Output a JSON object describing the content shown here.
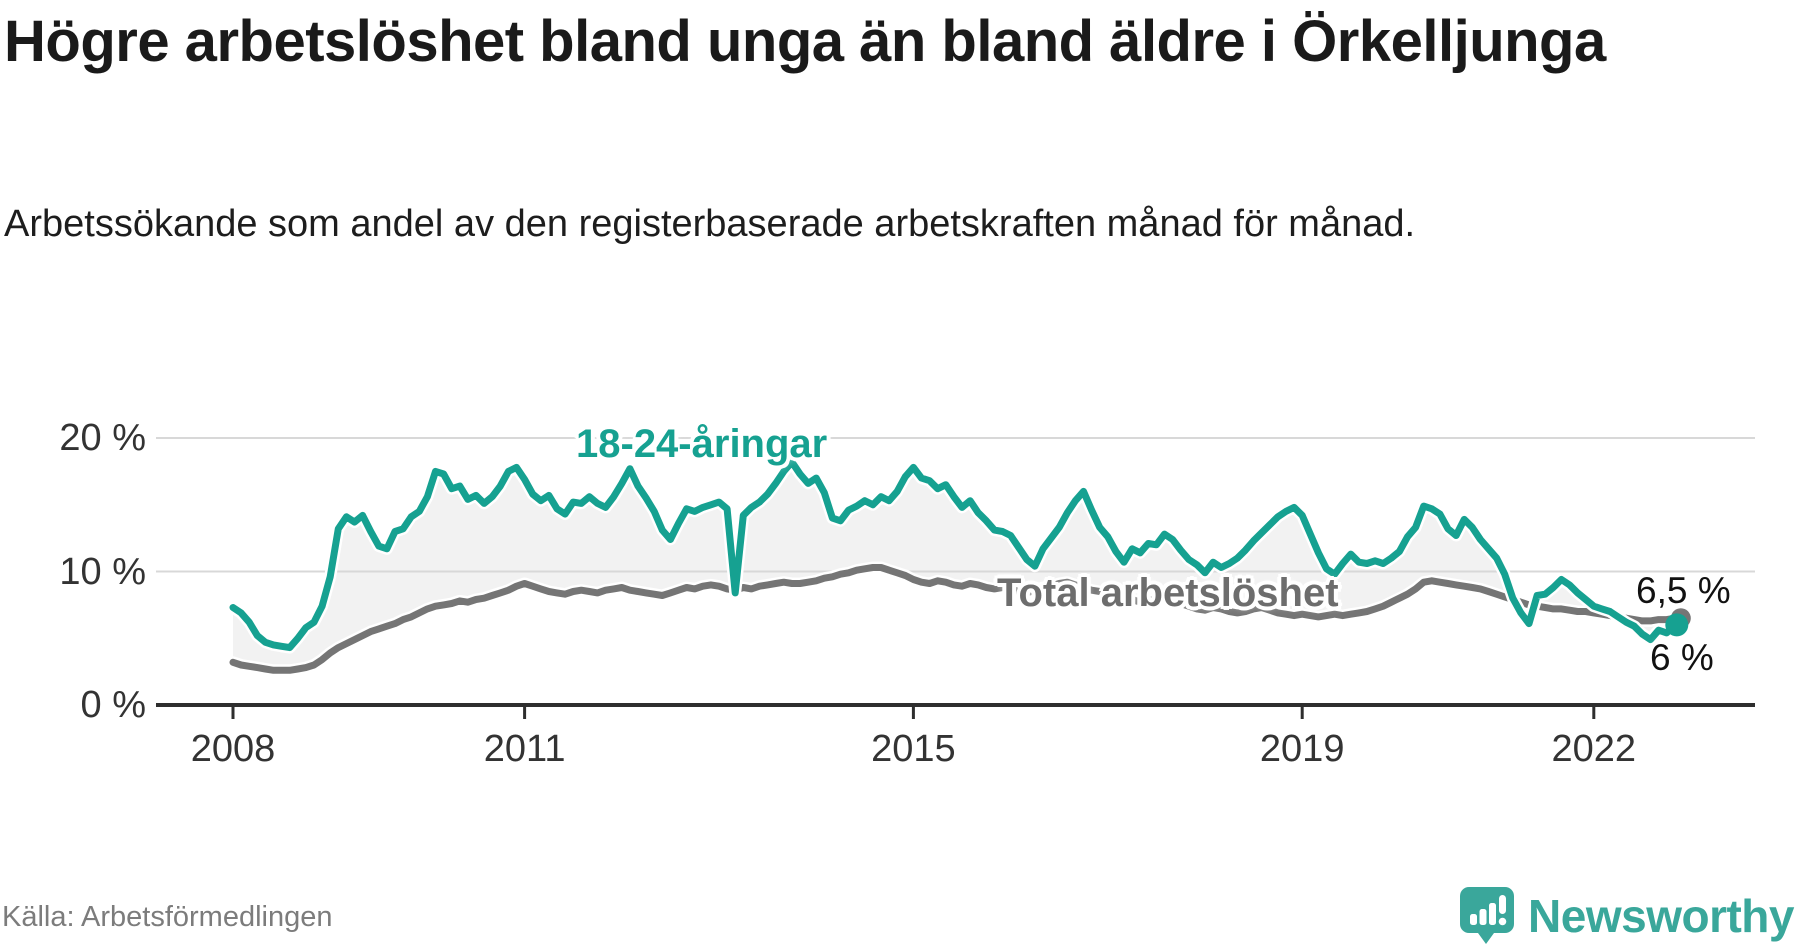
{
  "header": {
    "title": "Högre arbetslöshet bland unga än bland äldre i Örkelljunga",
    "subtitle": "Arbetssökande som andel av den registerbaserade arbetskraften månad för månad."
  },
  "footer": {
    "source": "Källa: Arbetsförmedlingen",
    "brand": "Newsworthy"
  },
  "colors": {
    "youth_line": "#16a191",
    "total_line": "#757575",
    "total_label": "#6d6d6d",
    "band_fill": "#f2f2f2",
    "gridline": "#d8d8d8",
    "axis": "#2e2e2e",
    "tick_text": "#333333",
    "end_label_text": "#111111",
    "brand_teal": "#3aa79b"
  },
  "chart_data": {
    "type": "line",
    "unit": "%",
    "frequency": "monthly",
    "x_start": "2008-01",
    "x_end": "2022-11",
    "ylim": [
      0,
      25
    ],
    "grid": "horizontal",
    "y_axis": {
      "tick_labels": [
        "20 %",
        "10 %",
        "0 %"
      ],
      "tick_values": [
        20,
        10,
        0
      ]
    },
    "x_axis": {
      "tick_years": [
        2008,
        2011,
        2015,
        2019,
        2022
      ]
    },
    "series": [
      {
        "name": "18-24-åringar",
        "color": "#16a191",
        "values": [
          7.3,
          6.9,
          6.2,
          5.2,
          4.7,
          4.5,
          4.4,
          4.3,
          5.0,
          5.8,
          6.2,
          7.4,
          9.6,
          13.2,
          14.1,
          13.7,
          14.2,
          13.0,
          11.9,
          11.7,
          13.0,
          13.2,
          14.1,
          14.5,
          15.6,
          17.5,
          17.3,
          16.2,
          16.4,
          15.4,
          15.7,
          15.1,
          15.6,
          16.4,
          17.5,
          17.8,
          16.9,
          15.8,
          15.3,
          15.7,
          14.7,
          14.3,
          15.2,
          15.1,
          15.6,
          15.1,
          14.8,
          15.6,
          16.6,
          17.7,
          16.4,
          15.5,
          14.5,
          13.1,
          12.4,
          13.6,
          14.7,
          14.5,
          14.8,
          15.0,
          15.2,
          14.7,
          8.4,
          14.2,
          14.8,
          15.2,
          15.8,
          16.6,
          17.5,
          18.2,
          17.3,
          16.6,
          17.0,
          15.9,
          14.0,
          13.8,
          14.6,
          14.9,
          15.3,
          15.0,
          15.6,
          15.3,
          16.0,
          17.1,
          17.8,
          17.0,
          16.8,
          16.2,
          16.5,
          15.6,
          14.8,
          15.3,
          14.4,
          13.8,
          13.1,
          13.0,
          12.7,
          11.8,
          10.9,
          10.4,
          11.7,
          12.5,
          13.3,
          14.4,
          15.3,
          16.0,
          14.6,
          13.3,
          12.6,
          11.5,
          10.7,
          11.7,
          11.4,
          12.1,
          12.0,
          12.8,
          12.4,
          11.6,
          10.9,
          10.5,
          9.9,
          10.7,
          10.3,
          10.6,
          11.0,
          11.6,
          12.3,
          12.9,
          13.5,
          14.1,
          14.5,
          14.8,
          14.2,
          12.8,
          11.4,
          10.2,
          9.8,
          10.6,
          11.3,
          10.7,
          10.6,
          10.8,
          10.6,
          11.0,
          11.5,
          12.6,
          13.3,
          14.9,
          14.7,
          14.3,
          13.2,
          12.7,
          13.9,
          13.3,
          12.4,
          11.7,
          11.0,
          9.8,
          8.0,
          6.9,
          6.1,
          8.2,
          8.3,
          8.8,
          9.4,
          9.0,
          8.4,
          7.9,
          7.4,
          7.2,
          7.0,
          6.6,
          6.2,
          5.9,
          5.3,
          4.9,
          5.6,
          5.4,
          6.0
        ]
      },
      {
        "name": "Total arbetslöshet",
        "color": "#757575",
        "values": [
          3.2,
          3.0,
          2.9,
          2.8,
          2.7,
          2.6,
          2.6,
          2.6,
          2.7,
          2.8,
          3.0,
          3.4,
          3.9,
          4.3,
          4.6,
          4.9,
          5.2,
          5.5,
          5.7,
          5.9,
          6.1,
          6.4,
          6.6,
          6.9,
          7.2,
          7.4,
          7.5,
          7.6,
          7.8,
          7.7,
          7.9,
          8.0,
          8.2,
          8.4,
          8.6,
          8.9,
          9.1,
          8.9,
          8.7,
          8.5,
          8.4,
          8.3,
          8.5,
          8.6,
          8.5,
          8.4,
          8.6,
          8.7,
          8.8,
          8.6,
          8.5,
          8.4,
          8.3,
          8.2,
          8.4,
          8.6,
          8.8,
          8.7,
          8.9,
          9.0,
          8.9,
          8.7,
          8.6,
          8.8,
          8.7,
          8.9,
          9.0,
          9.1,
          9.2,
          9.1,
          9.1,
          9.2,
          9.3,
          9.5,
          9.6,
          9.8,
          9.9,
          10.1,
          10.2,
          10.3,
          10.3,
          10.1,
          9.9,
          9.7,
          9.4,
          9.2,
          9.1,
          9.3,
          9.2,
          9.0,
          8.9,
          9.1,
          9.0,
          8.8,
          8.7,
          8.8,
          8.7,
          8.5,
          8.4,
          8.6,
          8.8,
          8.9,
          9.1,
          9.2,
          9.0,
          8.8,
          8.6,
          8.5,
          8.3,
          8.1,
          8.0,
          7.9,
          7.7,
          7.8,
          8.0,
          8.1,
          7.9,
          7.6,
          7.4,
          7.2,
          7.1,
          7.3,
          7.2,
          7.0,
          6.9,
          7.0,
          7.2,
          7.3,
          7.1,
          6.9,
          6.8,
          6.7,
          6.8,
          6.7,
          6.6,
          6.7,
          6.8,
          6.7,
          6.8,
          6.9,
          7.0,
          7.2,
          7.4,
          7.7,
          8.0,
          8.3,
          8.7,
          9.2,
          9.3,
          9.2,
          9.1,
          9.0,
          8.9,
          8.8,
          8.7,
          8.5,
          8.3,
          8.1,
          7.9,
          7.7,
          7.5,
          7.4,
          7.3,
          7.2,
          7.2,
          7.1,
          7.0,
          7.0,
          6.9,
          6.8,
          6.7,
          6.6,
          6.5,
          6.4,
          6.3,
          6.3,
          6.4,
          6.4,
          6.5
        ]
      }
    ],
    "end_labels": {
      "total": "6,5 %",
      "youth": "6 %"
    }
  }
}
